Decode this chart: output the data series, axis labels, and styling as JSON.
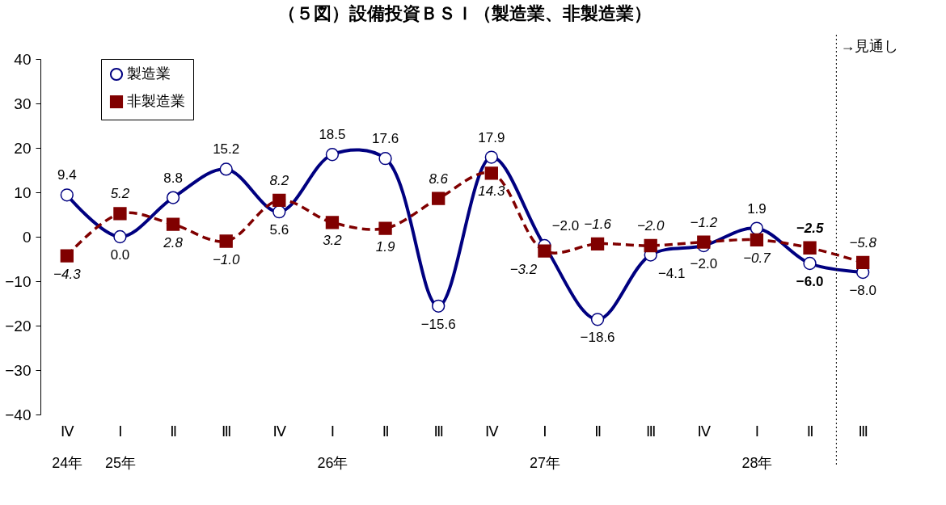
{
  "chart_data": {
    "type": "line",
    "title": "（５図）設備投資ＢＳＩ（製造業、非製造業）",
    "categories": [
      "Ⅳ\n24年",
      "Ⅰ\n25年",
      "Ⅱ",
      "Ⅲ",
      "Ⅳ",
      "Ⅰ\n26年",
      "Ⅱ",
      "Ⅲ",
      "Ⅳ",
      "Ⅰ\n27年",
      "Ⅱ",
      "Ⅲ",
      "Ⅳ",
      "Ⅰ\n28年",
      "Ⅱ",
      "Ⅲ"
    ],
    "series": [
      {
        "name": "製造業",
        "color": "#000080",
        "marker": "circle",
        "line_style": "solid",
        "values": [
          9.4,
          0.0,
          8.8,
          15.2,
          5.6,
          18.5,
          17.6,
          -15.6,
          17.9,
          -2.0,
          -18.6,
          -4.1,
          -2.0,
          1.9,
          -6.0,
          -8.0
        ],
        "value_labels": [
          "9.4",
          "0.0",
          "8.8",
          "15.2",
          "5.6",
          "18.5",
          "17.6",
          "−15.6",
          "17.9",
          "−2.0",
          "−18.6",
          "−4.1",
          "−2.0",
          "1.9",
          "−6.0",
          "−8.0"
        ]
      },
      {
        "name": "非製造業",
        "color": "#800000",
        "marker": "square",
        "line_style": "dashed",
        "values": [
          -4.3,
          5.2,
          2.8,
          -1.0,
          8.2,
          3.2,
          1.9,
          8.6,
          14.3,
          -3.2,
          -1.6,
          -2.0,
          -1.2,
          -0.7,
          -2.5,
          -5.8
        ],
        "value_labels": [
          "−4.3",
          "5.2",
          "2.8",
          "−1.0",
          "8.2",
          "3.2",
          "1.9",
          "8.6",
          "14.3",
          "−3.2",
          "−1.6",
          "−2.0",
          "−1.2",
          "−0.7",
          "−2.5",
          "−5.8"
        ]
      }
    ],
    "ylim": [
      -40,
      40
    ],
    "yticks": [
      -40,
      -30,
      -20,
      -10,
      0,
      10,
      20,
      30,
      40
    ],
    "legend": "top left",
    "annotations": [
      "→見通し"
    ]
  }
}
